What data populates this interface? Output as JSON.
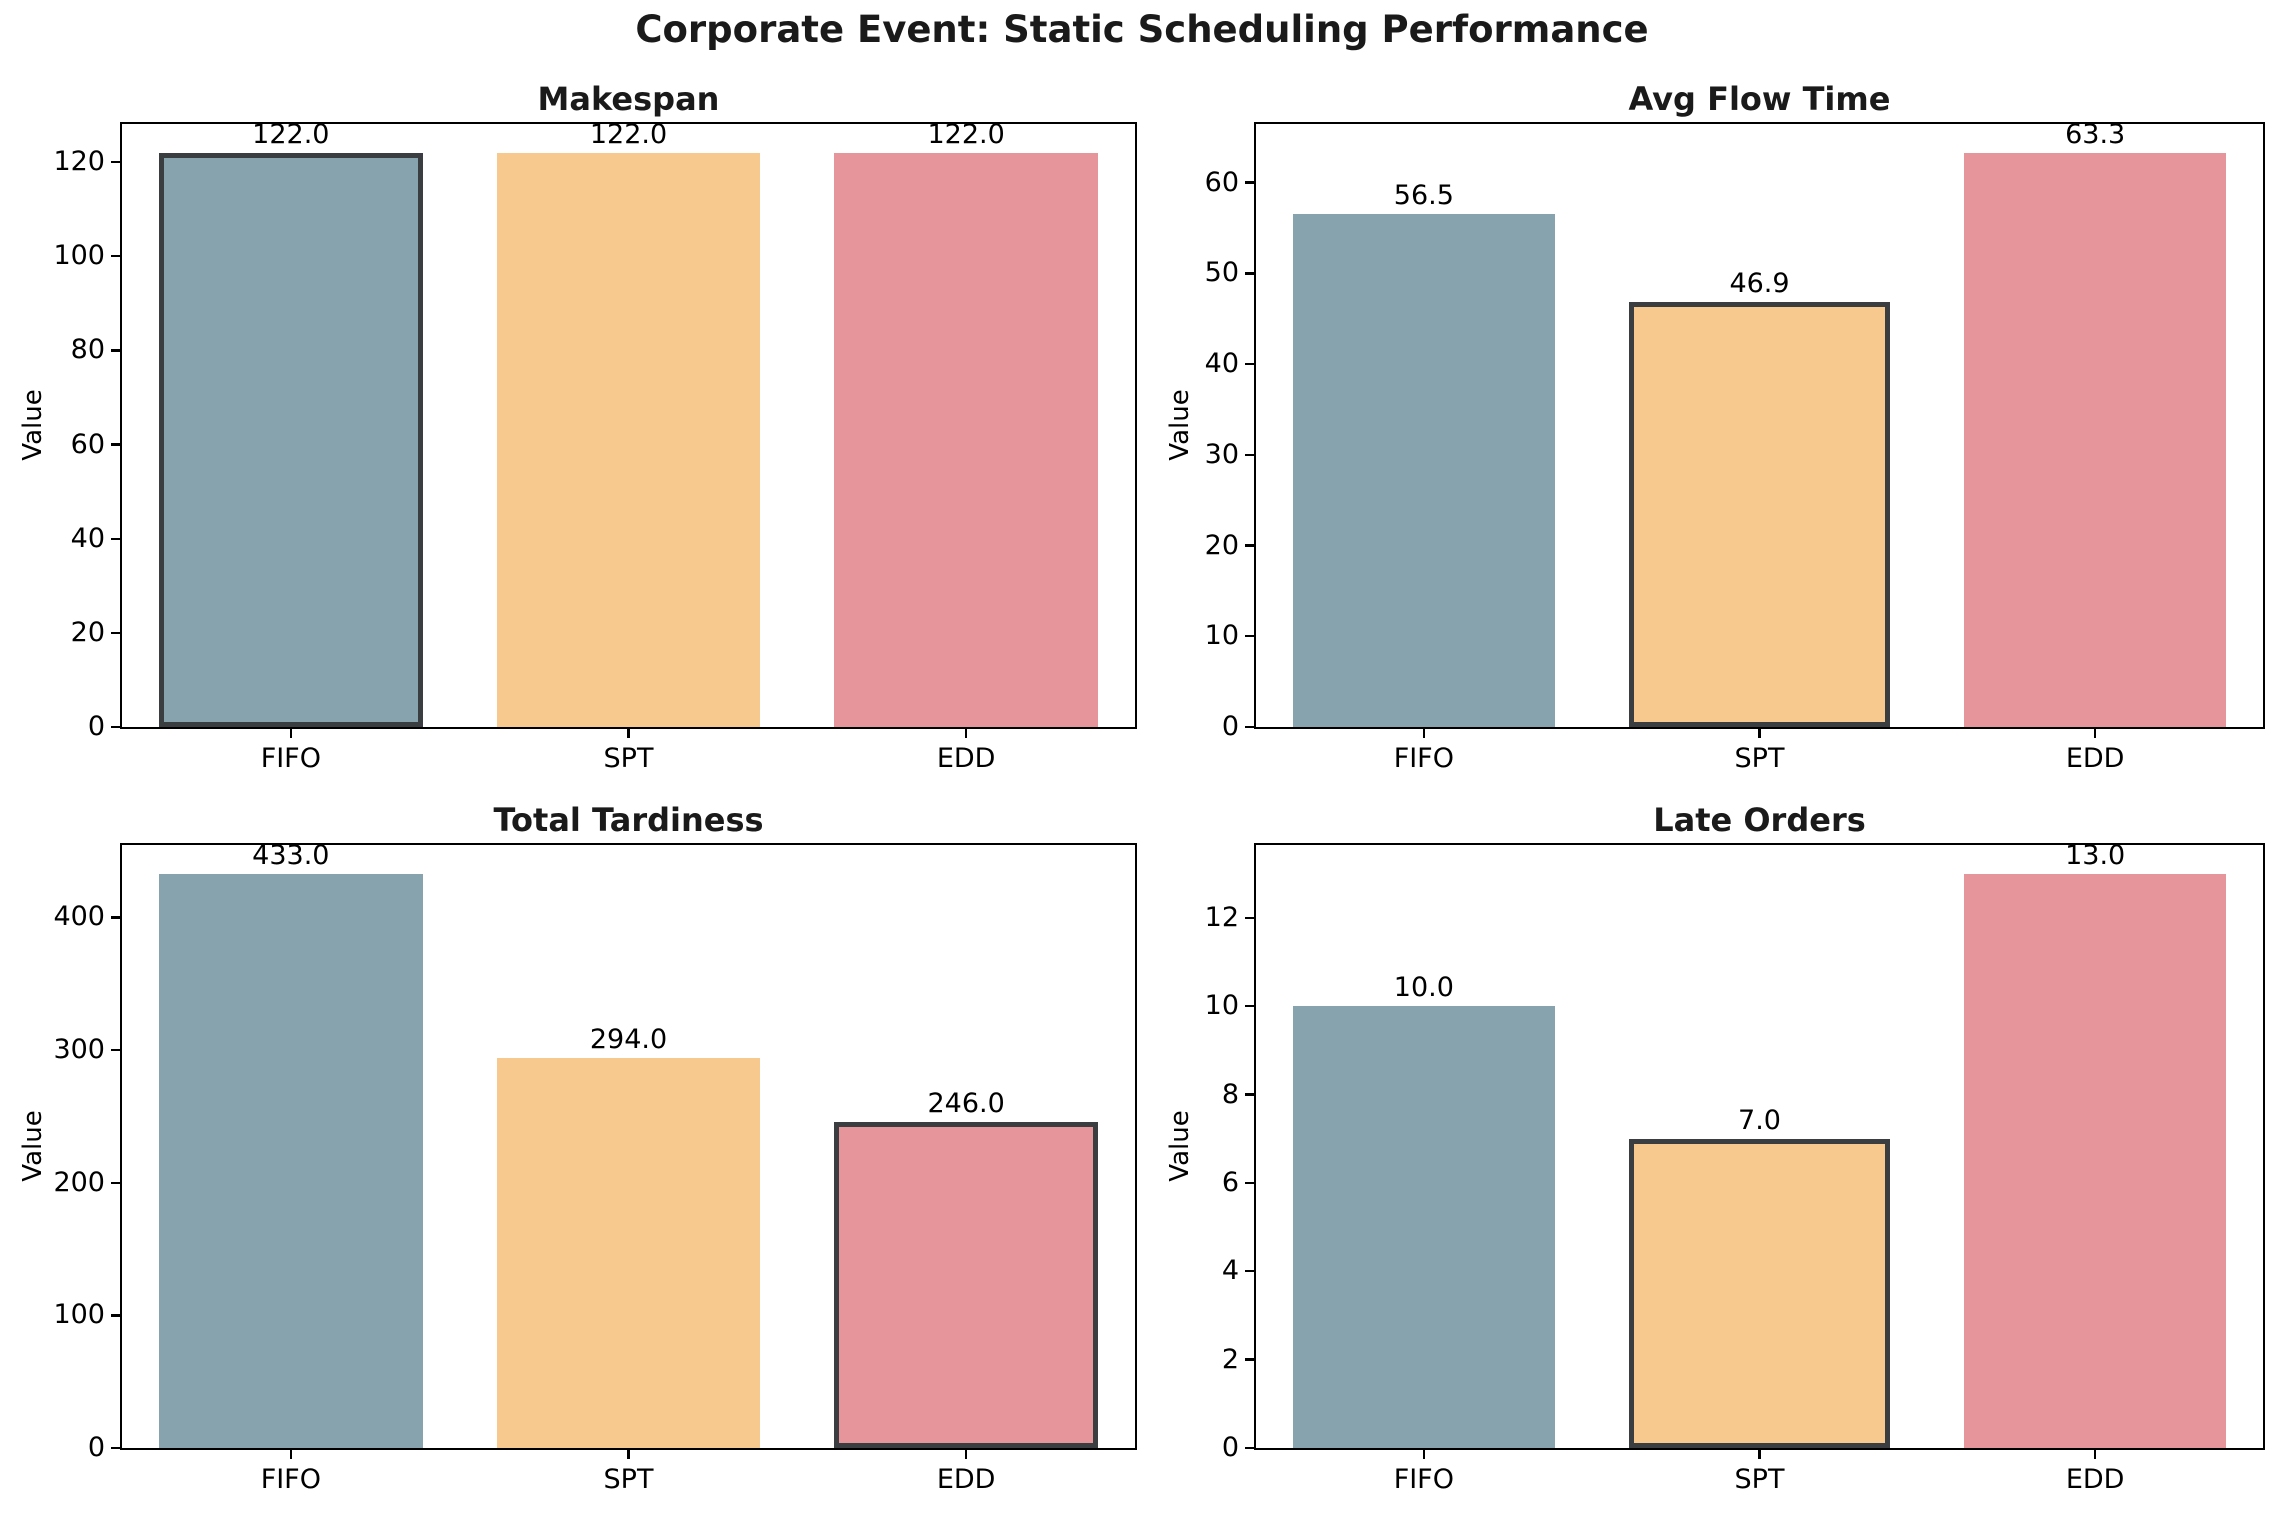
{
  "figure": {
    "suptitle": "Corporate Event: Static Scheduling Performance",
    "background": "#ffffff"
  },
  "palette": {
    "FIFO": "#87A3AE",
    "SPT": "#F8C98F",
    "EDD": "#E6969A",
    "highlight_edge": "#3A3E40",
    "axis_color": "#000000",
    "text_color": "#1A1A1A"
  },
  "chart_data": [
    {
      "type": "bar",
      "title": "Makespan",
      "ylabel": "Value",
      "categories": [
        "FIFO",
        "SPT",
        "EDD"
      ],
      "values": [
        122.0,
        122.0,
        122.0
      ],
      "bar_labels": [
        "122.0",
        "122.0",
        "122.0"
      ],
      "yticks": [
        0,
        20,
        40,
        60,
        80,
        100,
        120
      ],
      "ylim": [
        0,
        128.1
      ],
      "highlighted_category": "FIFO",
      "grid": false,
      "legend": "none"
    },
    {
      "type": "bar",
      "title": "Avg Flow Time",
      "ylabel": "Value",
      "categories": [
        "FIFO",
        "SPT",
        "EDD"
      ],
      "values": [
        56.5,
        46.9,
        63.3
      ],
      "bar_labels": [
        "56.5",
        "46.9",
        "63.3"
      ],
      "yticks": [
        0,
        10,
        20,
        30,
        40,
        50,
        60
      ],
      "ylim": [
        0,
        66.47
      ],
      "highlighted_category": "SPT",
      "grid": false,
      "legend": "none"
    },
    {
      "type": "bar",
      "title": "Total Tardiness",
      "ylabel": "Value",
      "categories": [
        "FIFO",
        "SPT",
        "EDD"
      ],
      "values": [
        433.0,
        294.0,
        246.0
      ],
      "bar_labels": [
        "433.0",
        "294.0",
        "246.0"
      ],
      "yticks": [
        0,
        100,
        200,
        300,
        400
      ],
      "ylim": [
        0,
        454.65
      ],
      "highlighted_category": "EDD",
      "grid": false,
      "legend": "none"
    },
    {
      "type": "bar",
      "title": "Late Orders",
      "ylabel": "Value",
      "categories": [
        "FIFO",
        "SPT",
        "EDD"
      ],
      "values": [
        10.0,
        7.0,
        13.0
      ],
      "bar_labels": [
        "10.0",
        "7.0",
        "13.0"
      ],
      "yticks": [
        0,
        2,
        4,
        6,
        8,
        10,
        12
      ],
      "ylim": [
        0,
        13.65
      ],
      "highlighted_category": "SPT",
      "grid": false,
      "legend": "none"
    }
  ]
}
